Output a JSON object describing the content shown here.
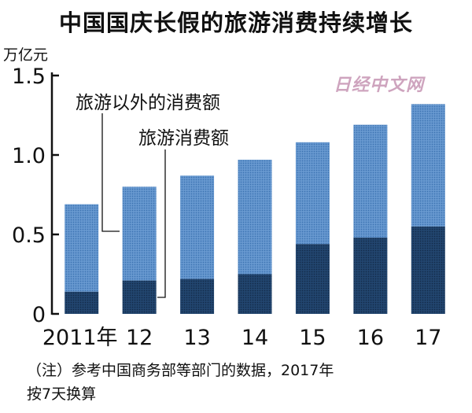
{
  "chart_data": {
    "type": "bar",
    "stacked": true,
    "title": "中国国庆长假的旅游消费持续增长",
    "ylabel": "万亿元",
    "categories": [
      "2011年",
      "12",
      "13",
      "14",
      "15",
      "16",
      "17"
    ],
    "yticks": [
      "0",
      "0.5",
      "1.0",
      "1.5"
    ],
    "ylim": [
      0,
      1.5
    ],
    "series": [
      {
        "name": "旅游消费额",
        "color": "#1e3f66",
        "values": [
          0.14,
          0.21,
          0.22,
          0.25,
          0.44,
          0.48,
          0.55
        ]
      },
      {
        "name": "旅游以外的消费额",
        "color": "#5b8fc9",
        "values": [
          0.55,
          0.59,
          0.65,
          0.72,
          0.64,
          0.71,
          0.77
        ]
      }
    ],
    "legend_placement": "inside-left",
    "grid": false
  },
  "watermark": "日经中文网",
  "note": "（注）参考中国商务部等部门的数据，2017年\n按7天换算"
}
